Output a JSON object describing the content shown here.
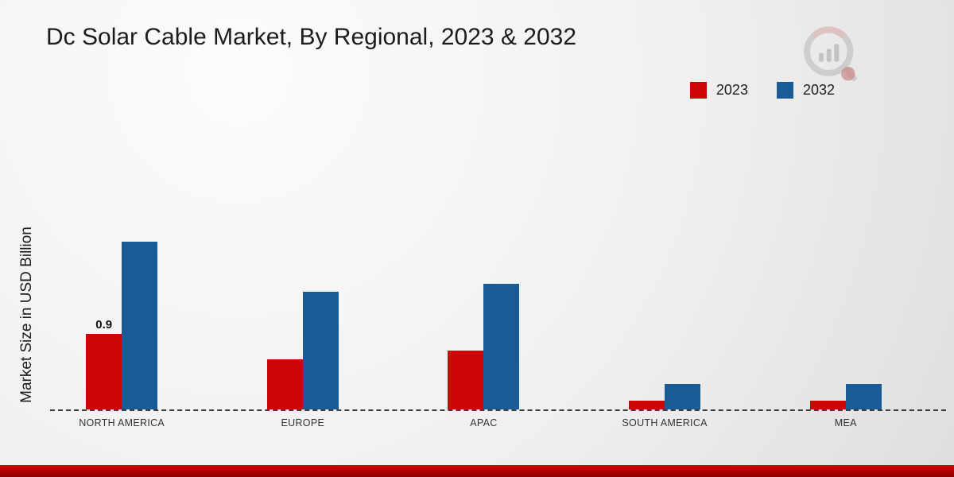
{
  "title": "Dc Solar Cable Market, By Regional, 2023 & 2032",
  "ylabel": "Market Size in USD Billion",
  "legend": [
    {
      "label": "2023",
      "color": "#cc0606"
    },
    {
      "label": "2032",
      "color": "#1a5a96"
    }
  ],
  "colors": {
    "series_2023": "#cc0606",
    "series_2032": "#1a5a96",
    "footer_strip": "#b00000",
    "baseline": "#3c3c3c"
  },
  "chart_data": {
    "type": "bar",
    "title": "Dc Solar Cable Market, By Regional, 2023 & 2032",
    "xlabel": "",
    "ylabel": "Market Size in USD Billion",
    "categories": [
      "NORTH AMERICA",
      "EUROPE",
      "APAC",
      "SOUTH AMERICA",
      "MEA"
    ],
    "series": [
      {
        "name": "2023",
        "color": "#cc0606",
        "values": [
          0.9,
          0.6,
          0.7,
          0.1,
          0.1
        ]
      },
      {
        "name": "2032",
        "color": "#1a5a96",
        "values": [
          2.0,
          1.4,
          1.5,
          0.3,
          0.3
        ]
      }
    ],
    "annotations": [
      {
        "series": "2023",
        "category_index": 0,
        "text": "0.9"
      }
    ],
    "ylim": [
      0,
      2.2
    ],
    "grid": false,
    "legend_position": "top-right",
    "baseline": "dashed"
  }
}
